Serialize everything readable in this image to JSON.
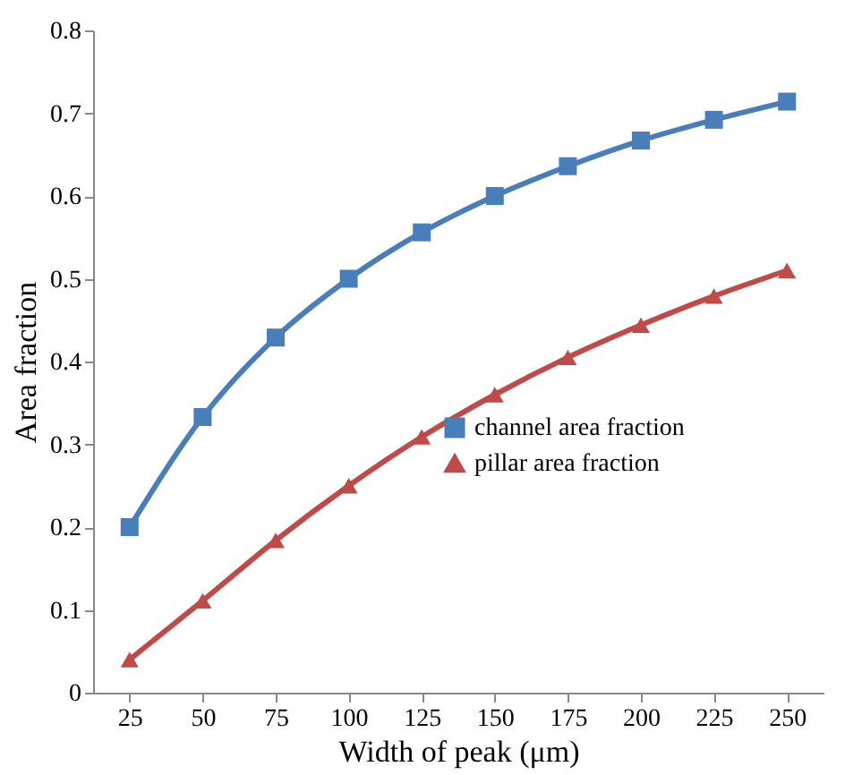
{
  "chart_data": {
    "type": "line",
    "xlabel": "Width of peak (μm)",
    "ylabel": "Area fraction",
    "categories": [
      "25",
      "50",
      "75",
      "100",
      "125",
      "150",
      "175",
      "200",
      "225",
      "250"
    ],
    "series": [
      {
        "name": "channel area fraction",
        "color": "#4a7ebb",
        "marker": "square",
        "values": [
          0.2,
          0.333,
          0.429,
          0.5,
          0.556,
          0.6,
          0.636,
          0.667,
          0.692,
          0.714
        ]
      },
      {
        "name": "pillar area fraction",
        "color": "#be4b48",
        "marker": "triangle",
        "values": [
          0.04,
          0.111,
          0.184,
          0.25,
          0.309,
          0.36,
          0.405,
          0.444,
          0.479,
          0.51
        ]
      }
    ],
    "ylim": [
      0,
      0.8
    ],
    "yticks": [
      {
        "value": 0,
        "label": "0"
      },
      0.1,
      0.2,
      0.3,
      0.4,
      0.5,
      0.6,
      0.7,
      0.8
    ],
    "grid": false,
    "legend": "right",
    "line_style": "solid"
  }
}
